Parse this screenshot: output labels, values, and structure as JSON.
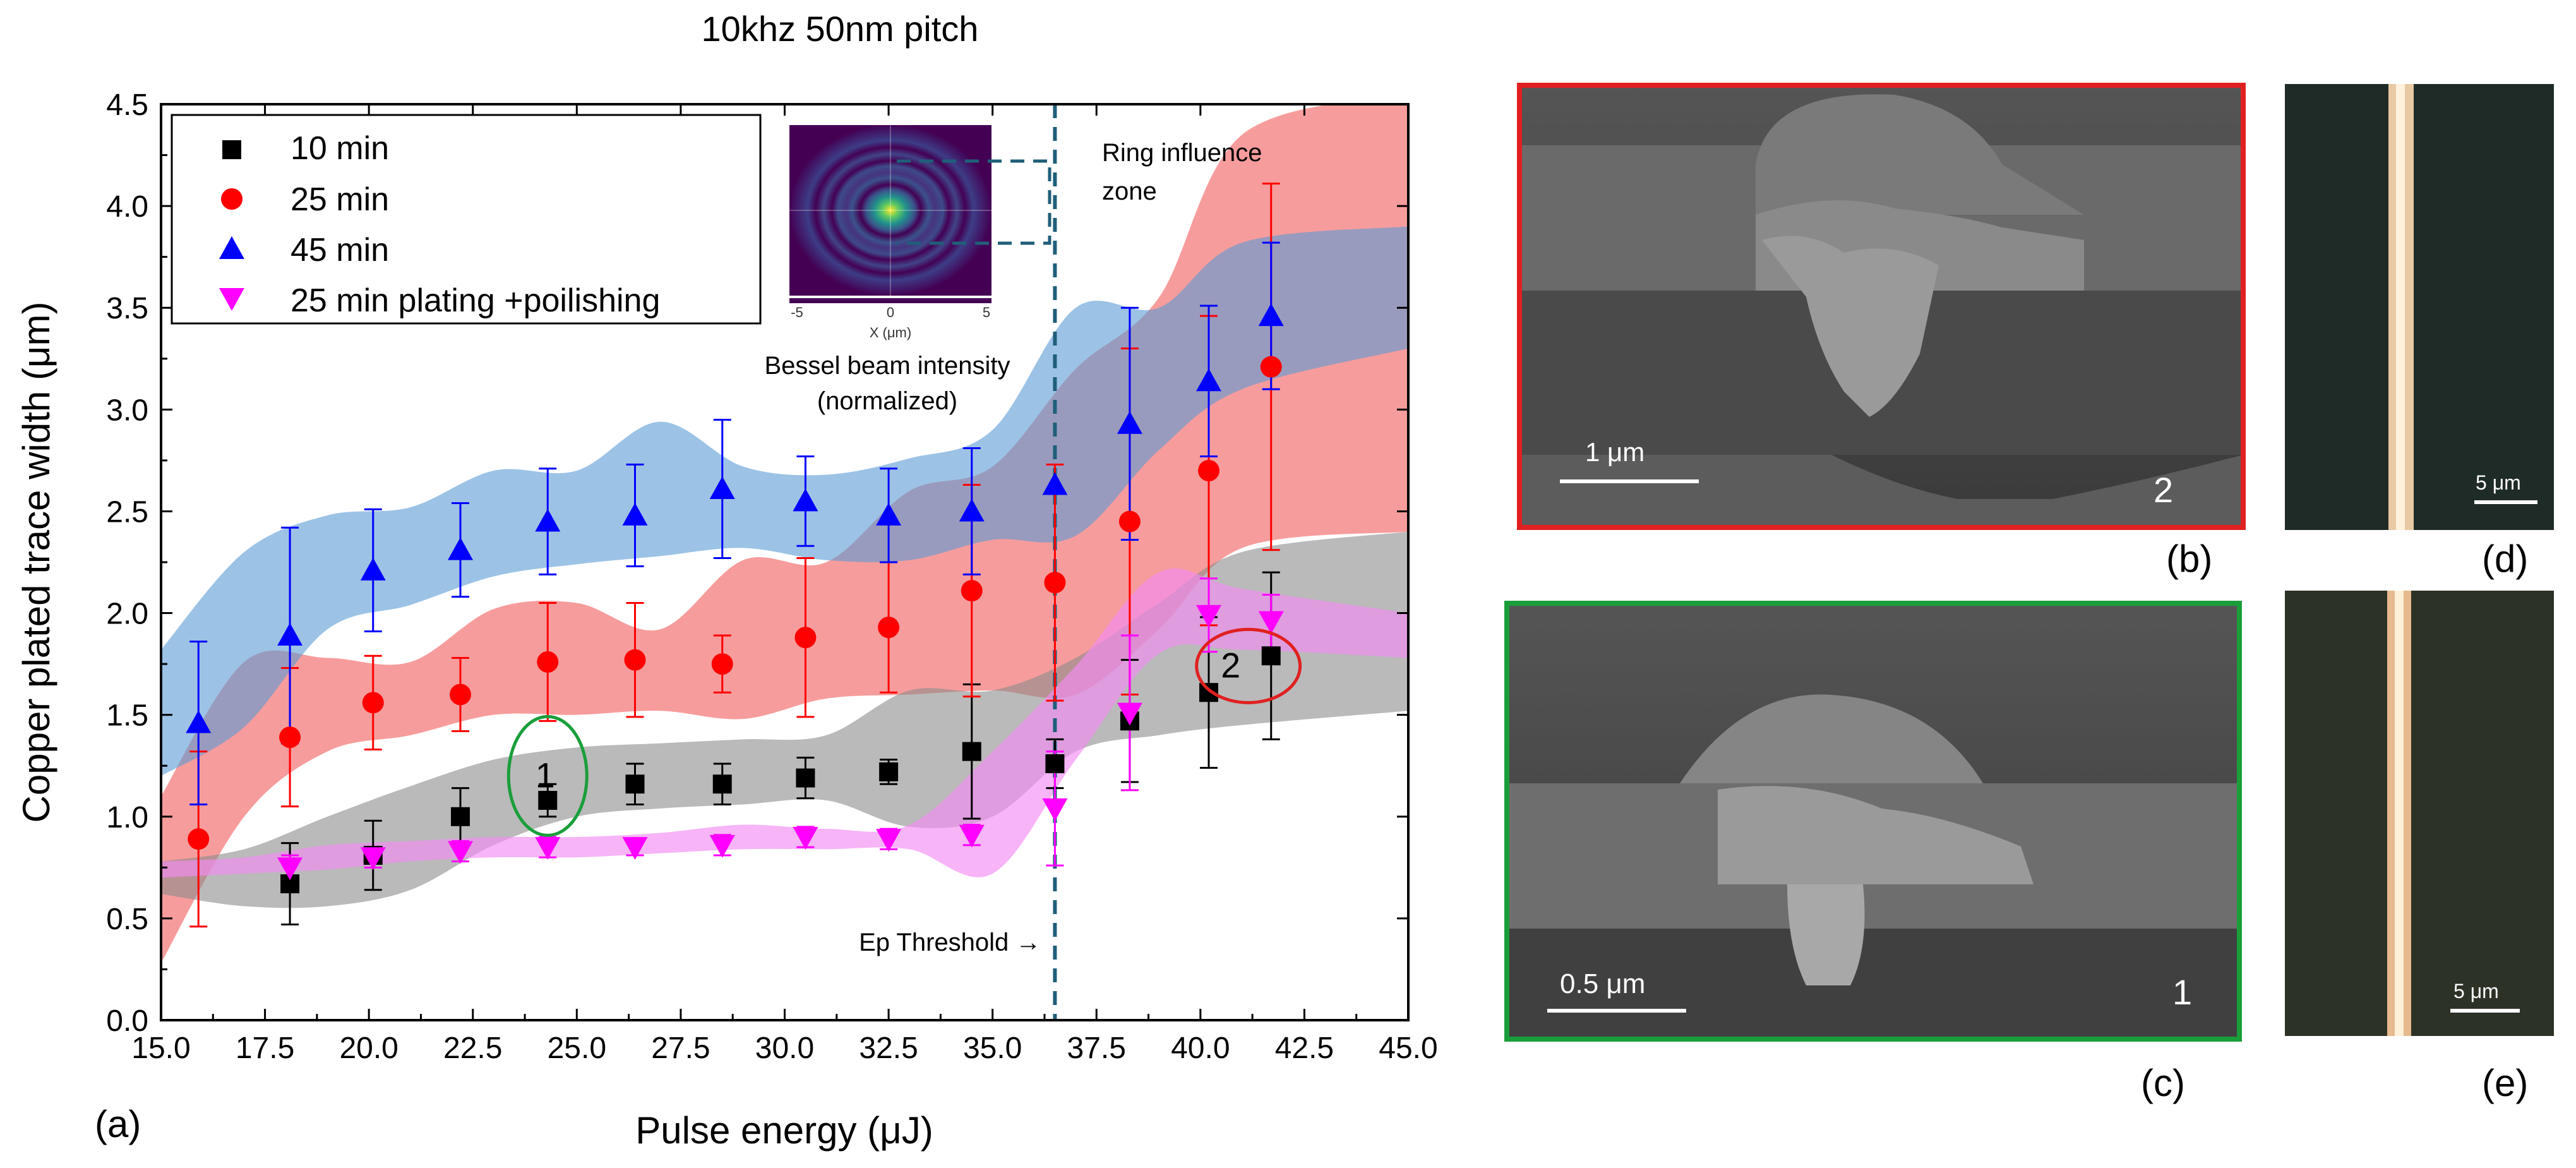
{
  "chart_data": {
    "type": "scatter",
    "title": "10khz 50nm pitch",
    "xlabel": "Pulse energy (μJ)",
    "ylabel": "Copper plated trace width (μm)",
    "panel_label": "(a)",
    "xlim": [
      15.0,
      45.0
    ],
    "ylim": [
      0.0,
      4.5
    ],
    "xticks": [
      "15.0",
      "17.5",
      "20.0",
      "22.5",
      "25.0",
      "27.5",
      "30.0",
      "32.5",
      "35.0",
      "37.5",
      "40.0",
      "42.5",
      "45.0"
    ],
    "yticks": [
      "0.0",
      "0.5",
      "1.0",
      "1.5",
      "2.0",
      "2.5",
      "3.0",
      "3.5",
      "4.0",
      "4.5"
    ],
    "threshold": {
      "x": 36.5,
      "label": "Ep Threshold →"
    },
    "ring_zone_label": [
      "Ring influence",
      "zone"
    ],
    "series": [
      {
        "name": "10 min",
        "marker": "square",
        "color": "#000000",
        "band_color": "#8c8c8c",
        "x": [
          18.1,
          20.1,
          22.2,
          24.3,
          26.4,
          28.5,
          30.5,
          32.5,
          34.5,
          36.5,
          38.3,
          40.2,
          41.7
        ],
        "y": [
          0.67,
          0.81,
          1.0,
          1.08,
          1.16,
          1.16,
          1.19,
          1.22,
          1.32,
          1.26,
          1.47,
          1.61,
          1.79
        ],
        "err": [
          0.2,
          0.17,
          0.14,
          0.08,
          0.1,
          0.1,
          0.1,
          0.06,
          0.33,
          0.12,
          0.3,
          0.37,
          0.41
        ],
        "band_upper": [
          0.78,
          0.84,
          1.0,
          1.15,
          1.28,
          1.34,
          1.36,
          1.38,
          1.4,
          1.62,
          1.62,
          1.78,
          2.05,
          2.3,
          2.4
        ],
        "band_lower": [
          0.62,
          0.56,
          0.56,
          0.64,
          0.86,
          1.0,
          1.04,
          1.06,
          1.08,
          0.95,
          1.0,
          1.32,
          1.4,
          1.45,
          1.52
        ]
      },
      {
        "name": "25 min",
        "marker": "circle",
        "color": "#ff0000",
        "band_color": "#f25a5a",
        "x": [
          15.9,
          18.1,
          20.1,
          22.2,
          24.3,
          26.4,
          28.5,
          30.5,
          32.5,
          34.5,
          36.5,
          38.3,
          40.2,
          41.7
        ],
        "y": [
          0.89,
          1.39,
          1.56,
          1.6,
          1.76,
          1.77,
          1.75,
          1.88,
          1.93,
          2.11,
          2.15,
          2.45,
          2.7,
          3.21
        ],
        "err": [
          0.43,
          0.34,
          0.23,
          0.18,
          0.29,
          0.28,
          0.14,
          0.39,
          0.32,
          0.52,
          0.58,
          0.85,
          0.76,
          0.9
        ],
        "band_upper": [
          1.1,
          1.76,
          1.78,
          1.76,
          2.02,
          2.05,
          1.92,
          2.26,
          2.25,
          2.6,
          2.72,
          3.2,
          3.55,
          4.35,
          4.55
        ],
        "band_lower": [
          0.28,
          1.0,
          1.32,
          1.4,
          1.5,
          1.5,
          1.52,
          1.48,
          1.58,
          1.6,
          1.62,
          1.6,
          1.92,
          2.32,
          2.4
        ]
      },
      {
        "name": "45 min",
        "marker": "triangle-up",
        "color": "#0000ff",
        "band_color": "#5a9bd5",
        "x": [
          15.9,
          18.1,
          20.1,
          22.2,
          24.3,
          26.4,
          28.5,
          30.5,
          32.5,
          34.5,
          36.5,
          38.3,
          40.2,
          41.7
        ],
        "y": [
          1.46,
          1.89,
          2.21,
          2.31,
          2.45,
          2.48,
          2.61,
          2.55,
          2.48,
          2.5,
          2.63,
          2.93,
          3.14,
          3.46
        ],
        "err": [
          0.4,
          0.53,
          0.3,
          0.23,
          0.26,
          0.25,
          0.34,
          0.22,
          0.23,
          0.31,
          0.0,
          0.57,
          0.37,
          0.36
        ],
        "band_upper": [
          1.82,
          2.3,
          2.48,
          2.52,
          2.7,
          2.7,
          2.94,
          2.72,
          2.68,
          2.76,
          2.9,
          3.5,
          3.5,
          3.82,
          3.9
        ],
        "band_lower": [
          1.2,
          1.44,
          1.92,
          2.04,
          2.18,
          2.24,
          2.28,
          2.32,
          2.26,
          2.26,
          2.36,
          2.38,
          2.8,
          3.1,
          3.3
        ]
      },
      {
        "name": "25 min plating +poilishing",
        "marker": "triangle-down",
        "color": "#ff00ff",
        "band_color": "#f28cf2",
        "x": [
          18.1,
          20.1,
          22.2,
          24.3,
          26.4,
          28.5,
          30.5,
          32.5,
          34.5,
          36.5,
          38.3,
          40.2,
          41.7
        ],
        "y": [
          0.75,
          0.8,
          0.83,
          0.85,
          0.85,
          0.86,
          0.9,
          0.89,
          0.91,
          1.04,
          1.51,
          1.99,
          1.96
        ],
        "err": [
          0.06,
          0.05,
          0.05,
          0.05,
          0.04,
          0.05,
          0.05,
          0.05,
          0.05,
          0.28,
          0.38,
          0.18,
          0.13
        ],
        "band_upper": [
          0.78,
          0.8,
          0.86,
          0.88,
          0.9,
          0.9,
          0.92,
          0.96,
          0.94,
          0.96,
          1.32,
          1.74,
          2.2,
          2.12,
          2.0
        ],
        "band_lower": [
          0.7,
          0.72,
          0.74,
          0.78,
          0.8,
          0.8,
          0.82,
          0.84,
          0.84,
          0.84,
          0.72,
          1.28,
          1.8,
          1.82,
          1.78
        ]
      }
    ],
    "band_x": [
      15.0,
      17.0,
      19.0,
      21.0,
      23.0,
      25.0,
      27.0,
      29.0,
      31.0,
      33.0,
      35.0,
      37.0,
      39.0,
      41.0,
      45.0
    ],
    "annotations": [
      {
        "label": "1",
        "x": 24.3,
        "y": 1.2,
        "color": "#1a9e3a"
      },
      {
        "label": "2",
        "x": 41.0,
        "y": 1.74,
        "color": "#e02020"
      }
    ],
    "inset": {
      "caption": [
        "Bessel beam intensity",
        "(normalized)"
      ],
      "xlabel": "X (μm)",
      "xticks": [
        "-5",
        "0",
        "5"
      ]
    }
  },
  "panels": [
    {
      "label": "(b)",
      "scale": "1 μm",
      "number": "2",
      "border_color": "#e02020"
    },
    {
      "label": "(c)",
      "scale": "0.5 μm",
      "number": "1",
      "border_color": "#1a9e3a"
    },
    {
      "label": "(d)",
      "scale": "5 μm"
    },
    {
      "label": "(e)",
      "scale": "5 μm"
    }
  ]
}
